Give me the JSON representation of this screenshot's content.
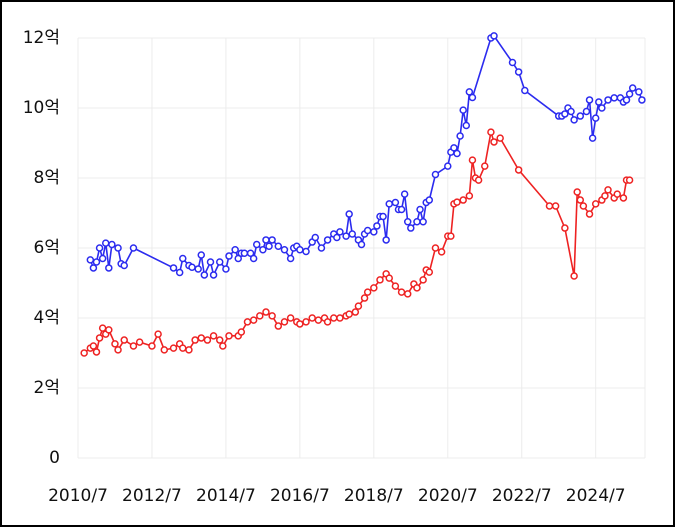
{
  "chart_data": {
    "type": "line",
    "xlim": [
      "2010/7",
      "2025/11"
    ],
    "xticks": [
      "2010/7",
      "2012/7",
      "2014/7",
      "2016/7",
      "2018/7",
      "2020/7",
      "2022/7",
      "2024/7"
    ],
    "ylim": [
      0,
      12
    ],
    "yticks": [
      0,
      {
        "value": 2,
        "label": "2억"
      },
      {
        "value": 4,
        "label": "4억"
      },
      {
        "value": 6,
        "label": "6억"
      },
      {
        "value": 8,
        "label": "8억"
      },
      {
        "value": 10,
        "label": "10억"
      },
      {
        "value": 12,
        "label": "12억"
      }
    ],
    "grid": true,
    "series": [
      {
        "color": "#2b2bef",
        "x": [
          "2010/11",
          "2010/12",
          "2011/1",
          "2011/2",
          "2011/3",
          "2011/4",
          "2011/5",
          "2011/6",
          "2011/8",
          "2011/9",
          "2011/10",
          "2012/1",
          "2013/2",
          "2013/4",
          "2013/5",
          "2013/7",
          "2013/8",
          "2013/10",
          "2013/11",
          "2013/12",
          "2014/2",
          "2014/3",
          "2014/5",
          "2014/7",
          "2014/8",
          "2014/10",
          "2014/11",
          "2014/12",
          "2015/1",
          "2015/3",
          "2015/4",
          "2015/5",
          "2015/7",
          "2015/8",
          "2015/9",
          "2015/10",
          "2015/12",
          "2016/2",
          "2016/4",
          "2016/5",
          "2016/6",
          "2016/7",
          "2016/9",
          "2016/11",
          "2016/12",
          "2017/2",
          "2017/4",
          "2017/6",
          "2017/7",
          "2017/8",
          "2017/10",
          "2017/11",
          "2017/12",
          "2018/2",
          "2018/3",
          "2018/4",
          "2018/5",
          "2018/7",
          "2018/8",
          "2018/9",
          "2018/10",
          "2018/11",
          "2018/12",
          "2019/2",
          "2019/3",
          "2019/4",
          "2019/5",
          "2019/6",
          "2019/7",
          "2019/9",
          "2019/10",
          "2019/11",
          "2019/12",
          "2020/1",
          "2020/3",
          "2020/7",
          "2020/8",
          "2020/9",
          "2020/10",
          "2020/11",
          "2020/12",
          "2021/1",
          "2021/2",
          "2021/3",
          "2021/9",
          "2021/10",
          "2022/4",
          "2022/6",
          "2022/8",
          "2023/7",
          "2023/8",
          "2023/9",
          "2023/10",
          "2023/11",
          "2023/12",
          "2024/2",
          "2024/4",
          "2024/5",
          "2024/6",
          "2024/7",
          "2024/8",
          "2024/9",
          "2024/11",
          "2025/1",
          "2025/3",
          "2025/4",
          "2025/5",
          "2025/6",
          "2025/7",
          "2025/9",
          "2025/10"
        ],
        "values": [
          5.66,
          5.43,
          5.6,
          6.0,
          5.7,
          6.14,
          5.43,
          6.1,
          6.0,
          5.55,
          5.5,
          6.0,
          5.43,
          5.3,
          5.7,
          5.5,
          5.45,
          5.4,
          5.8,
          5.23,
          5.6,
          5.23,
          5.6,
          5.4,
          5.77,
          5.95,
          5.7,
          5.85,
          5.85,
          5.85,
          5.7,
          6.1,
          5.95,
          6.23,
          6.05,
          6.23,
          6.05,
          5.95,
          5.7,
          6.0,
          6.05,
          5.95,
          5.9,
          6.17,
          6.3,
          6.0,
          6.23,
          6.4,
          6.3,
          6.46,
          6.34,
          6.97,
          6.4,
          6.23,
          6.1,
          6.4,
          6.5,
          6.46,
          6.63,
          6.9,
          6.9,
          6.23,
          7.26,
          7.3,
          7.1,
          7.1,
          7.54,
          6.75,
          6.57,
          6.75,
          7.1,
          6.75,
          7.3,
          7.37,
          8.1,
          8.34,
          8.74,
          8.86,
          8.7,
          9.2,
          9.94,
          9.5,
          10.46,
          10.3,
          12.0,
          12.06,
          11.3,
          11.03,
          10.5,
          9.77,
          9.77,
          9.83,
          10.0,
          9.9,
          9.66,
          9.77,
          9.9,
          10.23,
          9.14,
          9.71,
          10.17,
          10.0,
          10.23,
          10.29,
          10.29,
          10.17,
          10.23,
          10.4,
          10.57,
          10.46,
          10.23
        ]
      },
      {
        "color": "#ee2222",
        "x": [
          "2010/9",
          "2010/11",
          "2010/12",
          "2011/1",
          "2011/2",
          "2011/3",
          "2011/4",
          "2011/5",
          "2011/7",
          "2011/8",
          "2011/10",
          "2012/1",
          "2012/3",
          "2012/7",
          "2012/9",
          "2012/11",
          "2013/2",
          "2013/4",
          "2013/5",
          "2013/7",
          "2013/9",
          "2013/11",
          "2014/1",
          "2014/3",
          "2014/5",
          "2014/6",
          "2014/8",
          "2014/11",
          "2014/12",
          "2015/2",
          "2015/4",
          "2015/6",
          "2015/8",
          "2015/10",
          "2015/12",
          "2016/2",
          "2016/4",
          "2016/6",
          "2016/7",
          "2016/9",
          "2016/11",
          "2017/1",
          "2017/3",
          "2017/4",
          "2017/6",
          "2017/8",
          "2017/10",
          "2017/11",
          "2018/1",
          "2018/2",
          "2018/4",
          "2018/5",
          "2018/7",
          "2018/9",
          "2018/11",
          "2018/12",
          "2019/2",
          "2019/4",
          "2019/6",
          "2019/8",
          "2019/9",
          "2019/11",
          "2019/12",
          "2020/1",
          "2020/3",
          "2020/5",
          "2020/7",
          "2020/8",
          "2020/9",
          "2020/10",
          "2020/12",
          "2021/2",
          "2021/3",
          "2021/4",
          "2021/5",
          "2021/7",
          "2021/9",
          "2021/10",
          "2021/12",
          "2022/6",
          "2023/4",
          "2023/6",
          "2023/9",
          "2023/12",
          "2024/1",
          "2024/2",
          "2024/3",
          "2024/5",
          "2024/7",
          "2024/9",
          "2024/10",
          "2024/11",
          "2025/1",
          "2025/2",
          "2025/4",
          "2025/5",
          "2025/6"
        ],
        "values": [
          3.0,
          3.14,
          3.2,
          3.03,
          3.43,
          3.71,
          3.54,
          3.66,
          3.26,
          3.09,
          3.37,
          3.2,
          3.31,
          3.2,
          3.54,
          3.09,
          3.14,
          3.26,
          3.14,
          3.09,
          3.37,
          3.43,
          3.37,
          3.49,
          3.37,
          3.2,
          3.49,
          3.49,
          3.6,
          3.89,
          3.94,
          4.06,
          4.17,
          4.06,
          3.77,
          3.89,
          4.0,
          3.89,
          3.83,
          3.89,
          4.0,
          3.94,
          4.0,
          3.89,
          4.0,
          4.0,
          4.06,
          4.11,
          4.17,
          4.34,
          4.57,
          4.74,
          4.86,
          5.09,
          5.26,
          5.14,
          4.91,
          4.74,
          4.69,
          4.97,
          4.86,
          5.09,
          5.37,
          5.31,
          6.0,
          5.89,
          6.34,
          6.34,
          7.26,
          7.31,
          7.37,
          7.49,
          8.51,
          8.0,
          7.94,
          8.34,
          9.31,
          9.03,
          9.14,
          8.23,
          7.2,
          7.2,
          6.57,
          5.2,
          7.6,
          7.37,
          7.2,
          6.97,
          7.26,
          7.37,
          7.49,
          7.66,
          7.43,
          7.54,
          7.43,
          7.94,
          7.94
        ]
      }
    ]
  }
}
